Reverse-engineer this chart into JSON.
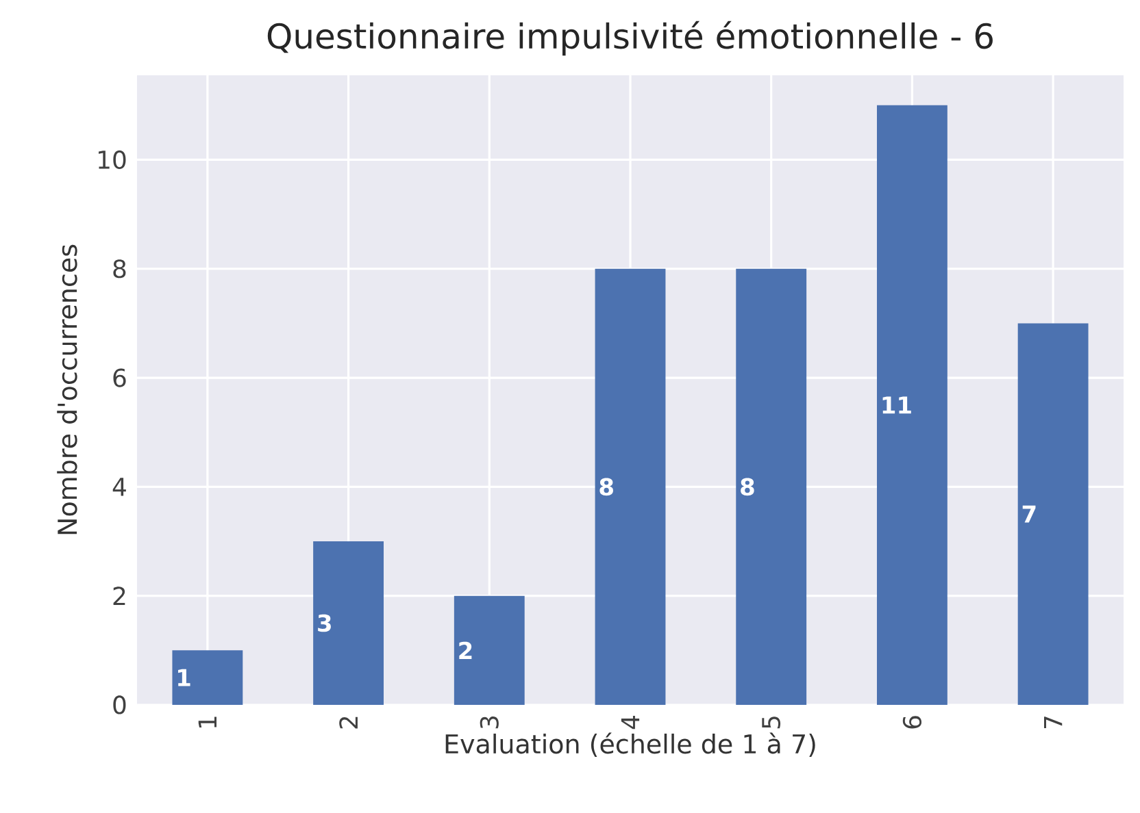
{
  "chart_data": {
    "type": "bar",
    "title": "Questionnaire impulsivité émotionnelle - 6",
    "xlabel": "Evaluation (échelle de 1 à 7)",
    "ylabel": "Nombre d'occurrences",
    "categories": [
      "1",
      "2",
      "3",
      "4",
      "5",
      "6",
      "7"
    ],
    "values": [
      1,
      3,
      2,
      8,
      8,
      11,
      7
    ],
    "color": "#4c72b0",
    "ylim": [
      0,
      11.55
    ],
    "yticks": [
      0,
      2,
      4,
      6,
      8,
      10
    ],
    "grid": true,
    "data_labels": true
  }
}
